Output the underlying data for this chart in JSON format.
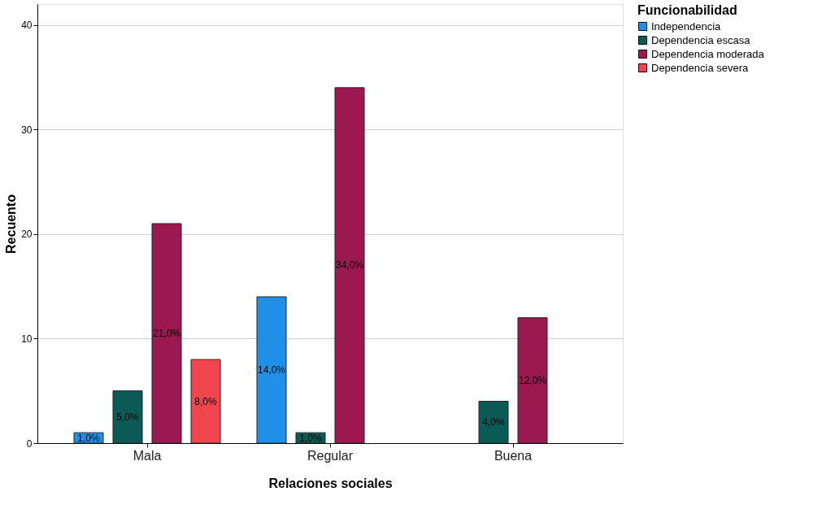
{
  "chart_data": {
    "type": "bar",
    "xlabel": "Relaciones sociales",
    "ylabel": "Recuento",
    "legend_title": "Funcionabilidad",
    "categories": [
      "Mala",
      "Regular",
      "Buena"
    ],
    "series": [
      {
        "name": "Independencia",
        "color": "#1f90e6",
        "values": [
          1,
          14,
          null
        ],
        "value_labels": [
          "1,0%",
          "14,0%",
          null
        ]
      },
      {
        "name": "Dependencia escasa",
        "color": "#0b5a55",
        "values": [
          5,
          1,
          4
        ],
        "value_labels": [
          "5,0%",
          "1,0%",
          "4,0%"
        ]
      },
      {
        "name": "Dependencia moderada",
        "color": "#9b1850",
        "values": [
          21,
          34,
          12
        ],
        "value_labels": [
          "21,0%",
          "34,0%",
          "12,0%"
        ]
      },
      {
        "name": "Dependencia severa",
        "color": "#f0474e",
        "values": [
          8,
          null,
          null
        ],
        "value_labels": [
          "8,0%",
          null,
          null
        ]
      }
    ],
    "ylim": [
      0,
      42
    ],
    "yticks": [
      0,
      10,
      20,
      30,
      40
    ],
    "grid": "y",
    "legend": "top right"
  }
}
